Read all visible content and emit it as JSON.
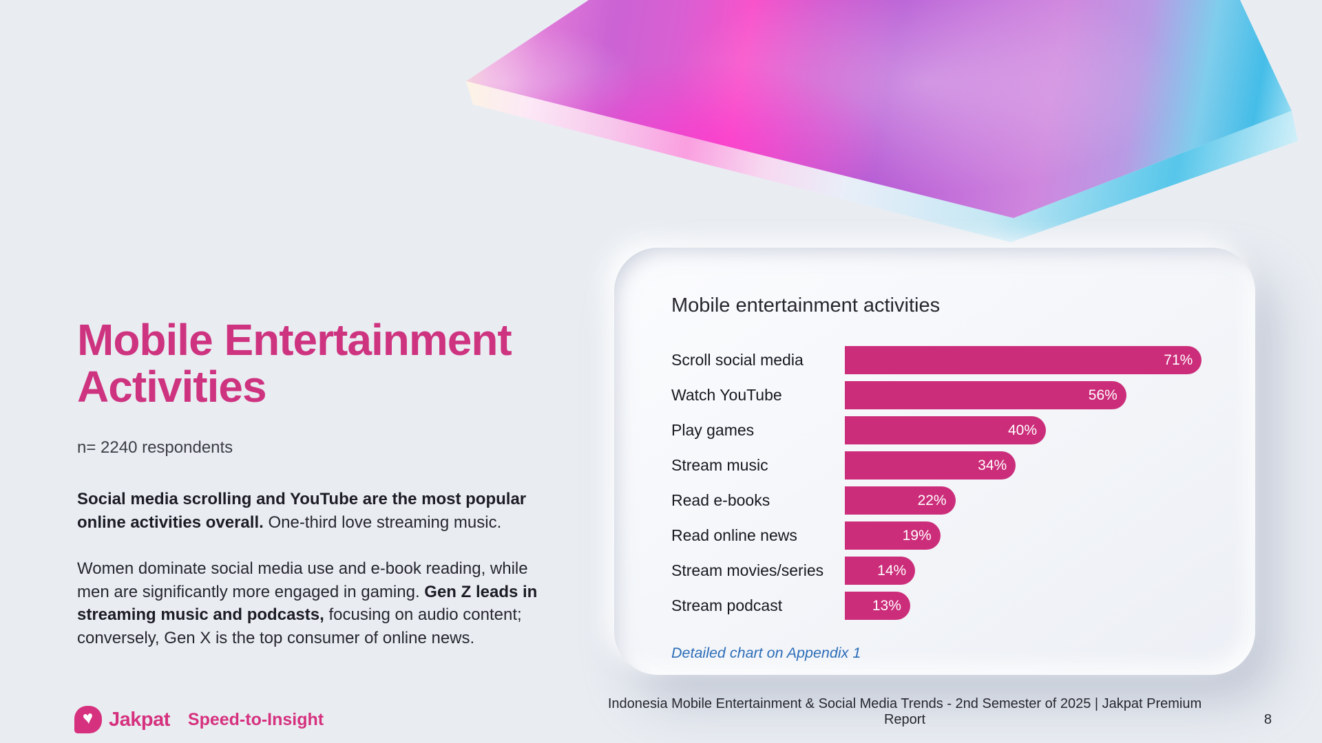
{
  "page": {
    "background": "#e9edf2",
    "accent_pink": "#ce3380",
    "title": "Mobile Entertainment\nActivities",
    "sample_size": "n= 2240 respondents",
    "para1_bold": "Social media scrolling and YouTube are the most popular online activities overall.",
    "para1_rest": " One-third love streaming music.",
    "para2_part1": "Women dominate social media use and e-book reading, while men are significantly more engaged in gaming. ",
    "para2_bold": "Gen Z leads in streaming music and podcasts,",
    "para2_part2": " focusing on audio content; conversely, Gen X is the top consumer of online news."
  },
  "chart_card": {
    "title": "Mobile entertainment activities",
    "appendix_note": "Detailed chart on Appendix 1",
    "appendix_color": "#2c6db8"
  },
  "chart_data": {
    "type": "bar",
    "orientation": "horizontal",
    "title": "Mobile entertainment activities",
    "categories": [
      "Scroll social media",
      "Watch YouTube",
      "Play games",
      "Stream music",
      "Read e-books",
      "Read online news",
      "Stream movies/series",
      "Stream podcast"
    ],
    "values": [
      71,
      56,
      40,
      34,
      22,
      19,
      14,
      13
    ],
    "value_suffix": "%",
    "bar_color": "#cc2d7a",
    "value_label_color": "#ffffff",
    "xlim": [
      0,
      100
    ],
    "grid": false,
    "legend": false
  },
  "footer": {
    "brand": "Jakpat",
    "tagline": "Speed-to-Insight",
    "report": "Indonesia Mobile Entertainment & Social Media Trends - 2nd Semester of 2025 | Jakpat Premium Report",
    "page_number": "8"
  }
}
